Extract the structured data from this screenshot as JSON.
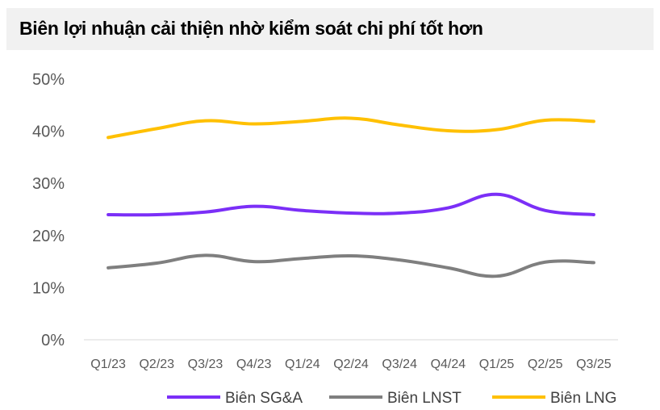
{
  "title": "Biên lợi nhuận cải thiện nhờ kiểm soát chi phí tốt hơn",
  "chart_data": {
    "type": "line",
    "title": "Biên lợi nhuận cải thiện nhờ kiểm soát chi phí tốt hơn",
    "categories": [
      "Q1/23",
      "Q2/23",
      "Q3/23",
      "Q4/23",
      "Q1/24",
      "Q2/24",
      "Q3/24",
      "Q4/24",
      "Q1/25",
      "Q2/25",
      "Q3/25"
    ],
    "ylim": [
      0,
      50
    ],
    "yticks": [
      "0%",
      "10%",
      "20%",
      "30%",
      "40%",
      "50%"
    ],
    "ytick_values": [
      0,
      10,
      20,
      30,
      40,
      50
    ],
    "grid": false,
    "legend_position": "bottom",
    "series": [
      {
        "name": "Biên SG&A",
        "color": "#7b2ff7",
        "values": [
          24.0,
          24.0,
          24.5,
          25.6,
          24.8,
          24.3,
          24.3,
          25.3,
          27.9,
          24.8,
          24.0
        ]
      },
      {
        "name": "Biên LNST",
        "color": "#7f7f7f",
        "values": [
          13.8,
          14.7,
          16.2,
          15.0,
          15.6,
          16.1,
          15.3,
          13.8,
          12.2,
          14.9,
          14.8
        ]
      },
      {
        "name": "Biên LNG",
        "color": "#ffc000",
        "values": [
          38.8,
          40.5,
          42.0,
          41.4,
          41.9,
          42.5,
          41.2,
          40.1,
          40.3,
          42.1,
          41.9
        ]
      }
    ]
  }
}
